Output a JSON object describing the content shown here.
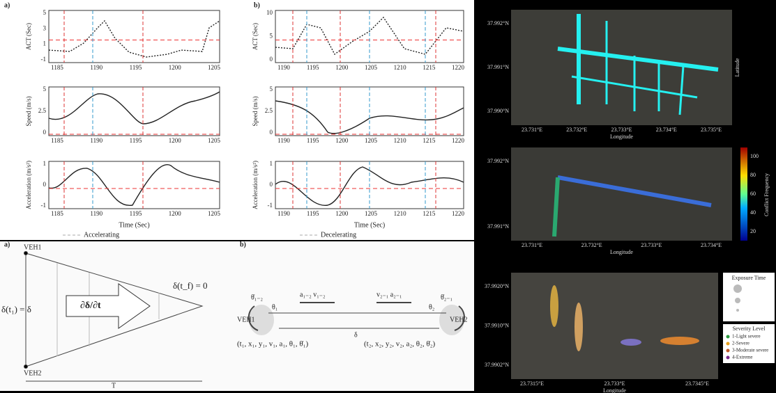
{
  "panel_a": {
    "label": "a)",
    "y_labels": [
      "ACT (Sec)",
      "Speed (m/s)",
      "Acceleration (m/s²)"
    ],
    "x_label": "Time (Sec)",
    "x_ticks": [
      "1185",
      "1190",
      "1195",
      "1200",
      "1205"
    ],
    "y_ticks": [
      [
        "5",
        "3",
        "1",
        "-1"
      ],
      [
        "5",
        "2.5",
        "0"
      ],
      [
        "1",
        "0",
        "-1"
      ]
    ],
    "legend": "Accelerating"
  },
  "panel_b": {
    "label": "b)",
    "y_labels": [
      "ACT (Sec)",
      "Speed (m/s)",
      "Acceleration (m/s²)"
    ],
    "x_label": "Time (Sec)",
    "x_ticks": [
      "1190",
      "1195",
      "1200",
      "1205",
      "1210",
      "1215",
      "1220"
    ],
    "y_ticks": [
      [
        "10",
        "5",
        "0"
      ],
      [
        "5",
        "2.5",
        "0"
      ],
      [
        "1",
        "0",
        "-1"
      ]
    ],
    "legend": "Decelerating"
  },
  "diagram_a": {
    "label": "a)",
    "veh1": "VEH1",
    "veh2": "VEH2",
    "start": "δ(t₁) = δ",
    "end": "δ(t_f) = 0",
    "rate": "∂δ/∂t",
    "duration": "T"
  },
  "diagram_b": {
    "label": "b)",
    "veh1": "VEH1",
    "veh2": "VEH2",
    "gap": "δ",
    "theta1": "θ₁",
    "theta2": "θ₂",
    "theta1_dot": "θ̇₁₋₂",
    "theta2_dot": "θ̇₂₋₁",
    "motion1": "a₁₋₂ v₁₋₂",
    "motion2": "v₂₋₁ a₂₋₁",
    "state1": "(t₁, x₁, y₁, v₁, a₁, θ₁, θ̇₁)",
    "state2": "(t₂, x₂, y₂, v₂, a₂, θ₂, θ̇₂)"
  },
  "map_1": {
    "x_label": "Longitude",
    "y_label": "Latitude",
    "x_ticks": [
      "23.731°E",
      "23.732°E",
      "23.733°E",
      "23.734°E",
      "23.735°E"
    ],
    "y_ticks": [
      "37.992°N",
      "37.991°N",
      "37.990°N"
    ]
  },
  "map_2": {
    "x_label": "Longitude",
    "y_label": "Latitude",
    "x_ticks": [
      "23.731°E",
      "23.732°E",
      "23.733°E",
      "23.734°E"
    ],
    "y_ticks": [
      "37.992°N",
      "37.991°N"
    ],
    "colorbar_label": "Conflict Frequency",
    "colorbar_ticks": [
      "100",
      "80",
      "60",
      "40",
      "20"
    ]
  },
  "map_3": {
    "x_label": "Longitude",
    "y_ticks": [
      "37.9920°N",
      "37.9910°N",
      "37.9902°N"
    ],
    "x_ticks": [
      "23.7315°E",
      "23.733°E",
      "23.7345°E"
    ],
    "legend_size_title": "Exposure Time",
    "legend_level_title": "Severity Level",
    "levels": [
      "1-Light severe",
      "2-Severe",
      "3-Moderate severe",
      "4-Extreme"
    ]
  }
}
